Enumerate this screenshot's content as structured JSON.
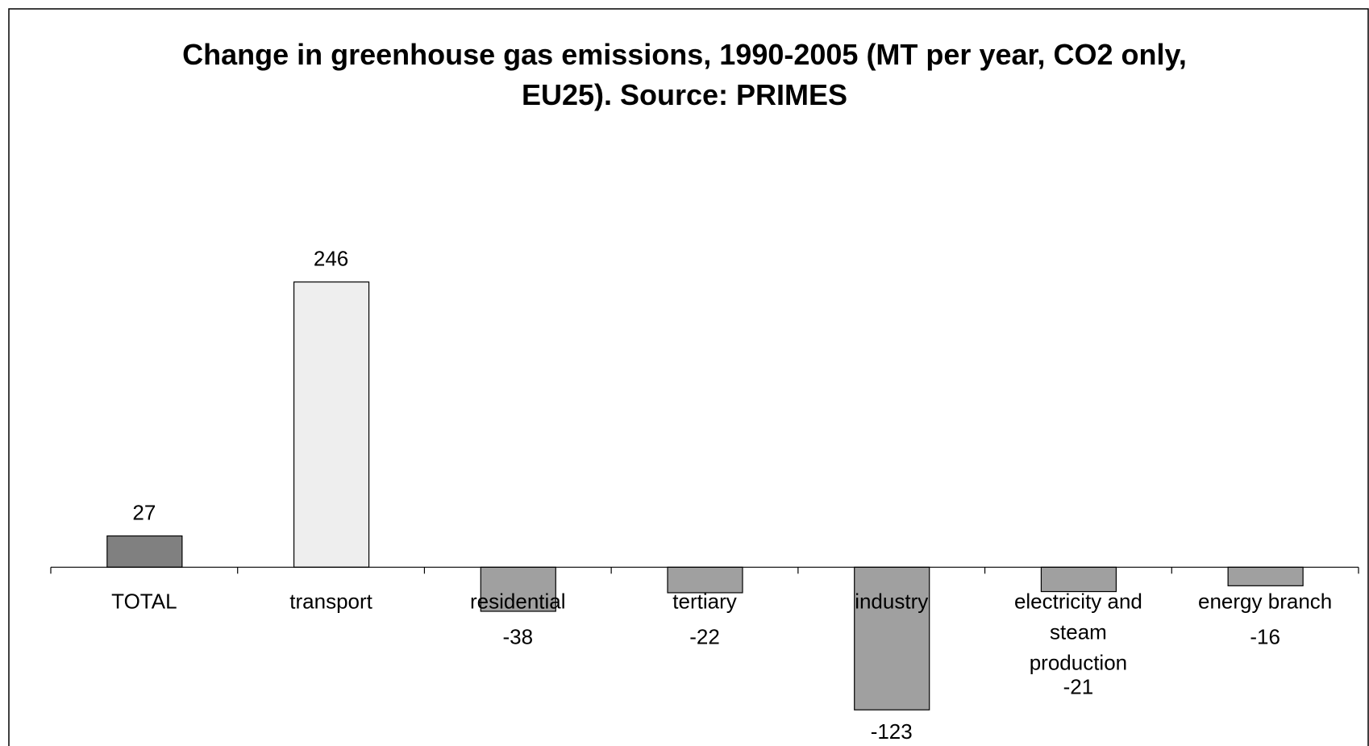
{
  "chart_data": {
    "type": "bar",
    "title": "Change in greenhouse gas emissions, 1990-2005 (MT per year, CO2 only, EU25). Source: PRIMES",
    "categories": [
      "TOTAL",
      "transport",
      "residential",
      "tertiary",
      "industry",
      "electricity and steam production",
      "energy branch"
    ],
    "values": [
      27,
      246,
      -38,
      -22,
      -123,
      -21,
      -16
    ],
    "colors": [
      "#808080",
      "#eeeeee",
      "#a0a0a0",
      "#a0a0a0",
      "#a0a0a0",
      "#a0a0a0",
      "#a0a0a0"
    ],
    "ylim": [
      -150,
      300
    ]
  }
}
